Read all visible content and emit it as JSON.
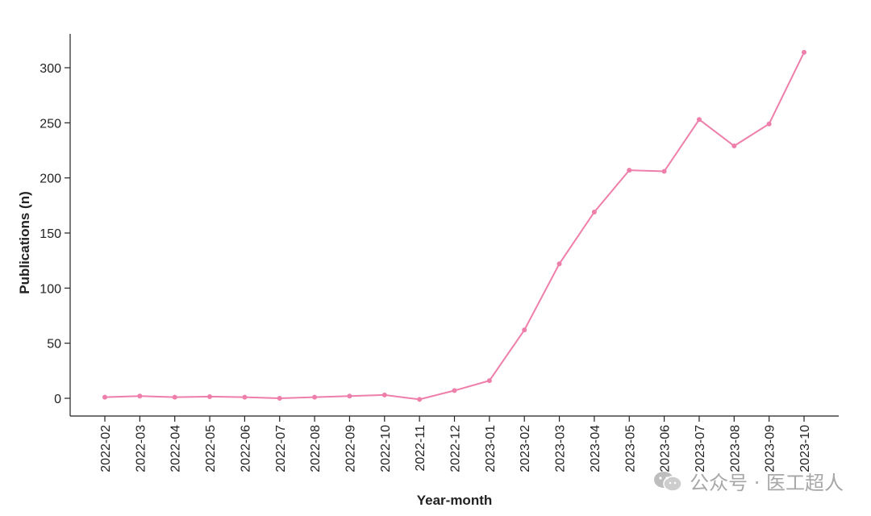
{
  "chart_data": {
    "type": "line",
    "xlabel": "Year-month",
    "ylabel": "Publications (n)",
    "categories": [
      "2022-02",
      "2022-03",
      "2022-04",
      "2022-05",
      "2022-06",
      "2022-07",
      "2022-08",
      "2022-09",
      "2022-10",
      "2022-11",
      "2022-12",
      "2023-01",
      "2023-02",
      "2023-03",
      "2023-04",
      "2023-05",
      "2023-06",
      "2023-07",
      "2023-08",
      "2023-09",
      "2023-10"
    ],
    "series": [
      {
        "values": [
          1,
          2,
          1,
          1.5,
          1,
          0,
          1,
          2,
          3,
          -1,
          7,
          16,
          62,
          122,
          169,
          207,
          206,
          253,
          229,
          249,
          314
        ]
      }
    ],
    "yticks": [
      0,
      50,
      100,
      150,
      200,
      250,
      300
    ],
    "ylim": [
      -17,
      330
    ],
    "color": "#ee7eaa",
    "grid": false,
    "legend": "none"
  },
  "watermark": {
    "text": "公众号 · 医工超人",
    "icon": "wechat-icon"
  }
}
